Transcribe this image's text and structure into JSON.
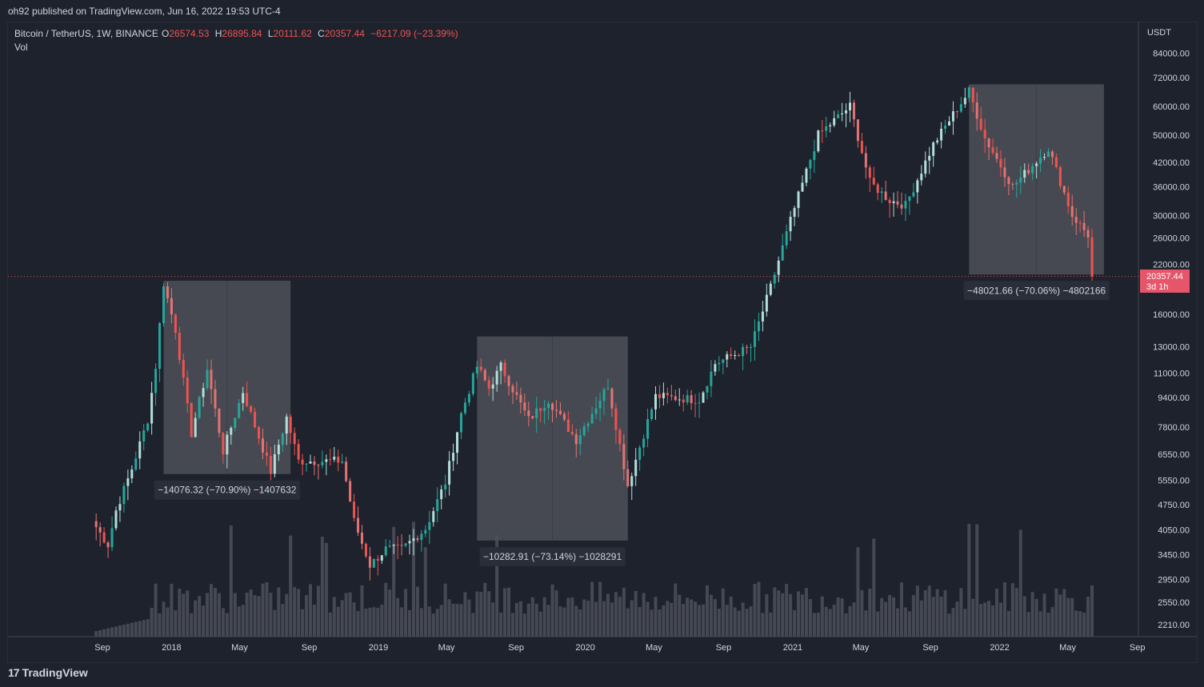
{
  "header": {
    "publish_line": "oh92 published on TradingView.com, Jun 16, 2022 19:53 UTC-4"
  },
  "footer": {
    "brand": "TradingView",
    "logo_mark": "17"
  },
  "colors": {
    "background": "#1e222d",
    "text": "#d1d4dc",
    "up": "#26a69a",
    "up_light": "#b2dfdb",
    "down": "#ef5350",
    "down_light": "#e57373",
    "ohlc_red": "#ef5350",
    "volume": "#4a4e59",
    "box": "#4d5058",
    "label_bg": "#2a2e39",
    "price_label_bg": "#e5566b"
  },
  "chart_data": {
    "type": "candlestick",
    "symbol_line": "Bitcoin / TetherUS, 1W, BINANCE",
    "ohlc": {
      "o_label": "O",
      "o": "26574.53",
      "h_label": "H",
      "h": "26895.84",
      "l_label": "L",
      "l": "20111.62",
      "c_label": "C",
      "c": "20357.44",
      "change": "−6217.09 (−23.39%)"
    },
    "volume_label": "Vol",
    "y_axis_currency": "USDT",
    "y_scale": "log",
    "y_ticks": [
      "84000.00",
      "72000.00",
      "60000.00",
      "50000.00",
      "42000.00",
      "36000.00",
      "30000.00",
      "26000.00",
      "22000.00",
      "16000.00",
      "13000.00",
      "11000.00",
      "9400.00",
      "7800.00",
      "6550.00",
      "5550.00",
      "4750.00",
      "4050.00",
      "3450.00",
      "2950.00",
      "2550.00",
      "2210.00"
    ],
    "y_tick_values": [
      84000,
      72000,
      60000,
      50000,
      42000,
      36000,
      30000,
      26000,
      22000,
      16000,
      13000,
      11000,
      9400,
      7800,
      6550,
      5550,
      4750,
      4050,
      3450,
      2950,
      2550,
      2210
    ],
    "x_ticks": [
      "Sep",
      "2018",
      "May",
      "Sep",
      "2019",
      "May",
      "Sep",
      "2020",
      "May",
      "Sep",
      "2021",
      "May",
      "Sep",
      "2022",
      "May",
      "Sep"
    ],
    "x_tick_dates": [
      "2017-09-01",
      "2018-01-01",
      "2018-05-01",
      "2018-09-01",
      "2019-01-01",
      "2019-05-01",
      "2019-09-01",
      "2020-01-01",
      "2020-05-01",
      "2020-09-01",
      "2021-01-01",
      "2021-05-01",
      "2021-09-01",
      "2022-01-01",
      "2022-05-01",
      "2022-09-01"
    ],
    "last_price": "20357.44",
    "last_price_value": 20357.44,
    "last_price_countdown": "3d 1h",
    "key_points": [
      {
        "date": "2017-08-14",
        "price": 4300
      },
      {
        "date": "2017-09-11",
        "price": 3700
      },
      {
        "date": "2017-09-25",
        "price": 4600
      },
      {
        "date": "2017-10-23",
        "price": 6000
      },
      {
        "date": "2017-11-20",
        "price": 8200
      },
      {
        "date": "2017-12-04",
        "price": 11500
      },
      {
        "date": "2017-12-18",
        "price": 19500
      },
      {
        "date": "2018-01-08",
        "price": 14500
      },
      {
        "date": "2018-02-05",
        "price": 7500
      },
      {
        "date": "2018-03-05",
        "price": 11300
      },
      {
        "date": "2018-04-02",
        "price": 6700
      },
      {
        "date": "2018-05-07",
        "price": 9800
      },
      {
        "date": "2018-06-25",
        "price": 5900
      },
      {
        "date": "2018-07-23",
        "price": 8300
      },
      {
        "date": "2018-08-13",
        "price": 6300
      },
      {
        "date": "2018-10-29",
        "price": 6300
      },
      {
        "date": "2018-11-19",
        "price": 4300
      },
      {
        "date": "2018-12-17",
        "price": 3250
      },
      {
        "date": "2019-01-14",
        "price": 3600
      },
      {
        "date": "2019-02-11",
        "price": 3600
      },
      {
        "date": "2019-03-25",
        "price": 4100
      },
      {
        "date": "2019-04-29",
        "price": 5500
      },
      {
        "date": "2019-05-27",
        "price": 8500
      },
      {
        "date": "2019-06-24",
        "price": 11500
      },
      {
        "date": "2019-07-15",
        "price": 10000
      },
      {
        "date": "2019-08-05",
        "price": 11500
      },
      {
        "date": "2019-09-23",
        "price": 8200
      },
      {
        "date": "2019-10-28",
        "price": 9300
      },
      {
        "date": "2019-12-16",
        "price": 7200
      },
      {
        "date": "2020-02-10",
        "price": 10200
      },
      {
        "date": "2020-03-16",
        "price": 5400
      },
      {
        "date": "2020-04-06",
        "price": 6900
      },
      {
        "date": "2020-05-04",
        "price": 9500
      },
      {
        "date": "2020-07-20",
        "price": 9300
      },
      {
        "date": "2020-08-17",
        "price": 11700
      },
      {
        "date": "2020-10-19",
        "price": 13000
      },
      {
        "date": "2020-11-23",
        "price": 19000
      },
      {
        "date": "2020-12-28",
        "price": 29000
      },
      {
        "date": "2021-02-15",
        "price": 50000
      },
      {
        "date": "2021-04-12",
        "price": 60000
      },
      {
        "date": "2021-05-17",
        "price": 37000
      },
      {
        "date": "2021-06-21",
        "price": 33000
      },
      {
        "date": "2021-07-19",
        "price": 32000
      },
      {
        "date": "2021-09-06",
        "price": 47000
      },
      {
        "date": "2021-10-11",
        "price": 57000
      },
      {
        "date": "2021-11-08",
        "price": 66000
      },
      {
        "date": "2021-12-06",
        "price": 49000
      },
      {
        "date": "2022-01-24",
        "price": 36000
      },
      {
        "date": "2022-03-28",
        "price": 46000
      },
      {
        "date": "2022-05-09",
        "price": 30000
      },
      {
        "date": "2022-06-06",
        "price": 26500
      },
      {
        "date": "2022-06-13",
        "price": 20357
      }
    ],
    "drawdowns": [
      {
        "start": "2017-12-18",
        "end": "2018-07-30",
        "top": 19800,
        "bottom": 5800,
        "label": "−14076.32 (−70.90%) −1407632"
      },
      {
        "start": "2019-06-24",
        "end": "2020-03-16",
        "top": 13900,
        "bottom": 3800,
        "label": "−10282.91 (−73.14%) −1028291"
      },
      {
        "start": "2021-11-08",
        "end": "2022-07-04",
        "top": 69000,
        "bottom": 20600,
        "label": "−48021.66 (−70.06%) −4802166"
      }
    ]
  }
}
